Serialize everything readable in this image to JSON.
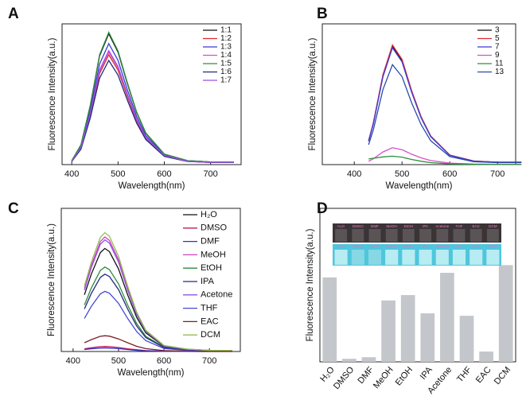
{
  "chart_data": [
    {
      "type": "line",
      "label": "A",
      "xlabel": "Wavelength(nm)",
      "ylabel": "Fluorescence Intensity(a.u.)",
      "xlim": [
        379,
        766
      ],
      "xticks": [
        400,
        500,
        600,
        700
      ],
      "ylim": [
        0,
        100
      ],
      "legend": "upper right",
      "x": [
        400,
        420,
        440,
        460,
        480,
        500,
        520,
        540,
        560,
        600,
        650,
        700,
        750
      ],
      "series": [
        {
          "name": "1:1",
          "color": "#111111",
          "values": [
            2.8,
            14,
            41.9,
            77.2,
            93,
            80,
            57.7,
            37.2,
            22.3,
            7.4,
            2.8,
            1.9,
            1.9
          ]
        },
        {
          "name": "1:2",
          "color": "#e0282e",
          "values": [
            2.3,
            11.7,
            35.1,
            64.7,
            78,
            67.1,
            48.4,
            31.2,
            18.7,
            6.2,
            2.3,
            1.6,
            1.6
          ]
        },
        {
          "name": "1:3",
          "color": "#3b3bd6",
          "values": [
            2.6,
            12.9,
            38.7,
            71.4,
            86,
            74,
            53.3,
            34.4,
            20.6,
            6.9,
            2.6,
            1.7,
            1.7
          ]
        },
        {
          "name": "1:4",
          "color": "#d84fc9",
          "values": [
            2.4,
            12,
            36,
            66.4,
            80,
            68.8,
            49.6,
            32,
            19.2,
            6.4,
            2.4,
            1.6,
            1.6
          ]
        },
        {
          "name": "1:5",
          "color": "#2f8f3f",
          "values": [
            2.8,
            14.1,
            42.3,
            78,
            94,
            80.8,
            58.3,
            37.6,
            22.6,
            7.5,
            2.8,
            1.9,
            1.9
          ]
        },
        {
          "name": "1:6",
          "color": "#1e2a78",
          "values": [
            2.2,
            11.1,
            33.3,
            61.4,
            74,
            63.6,
            45.9,
            29.6,
            17.8,
            5.9,
            2.2,
            1.5,
            1.5
          ]
        },
        {
          "name": "1:7",
          "color": "#9b4fe0",
          "values": [
            2.4,
            12.2,
            36.5,
            67.2,
            81,
            69.7,
            50.2,
            32.4,
            19.4,
            6.5,
            2.4,
            1.6,
            1.6
          ]
        }
      ]
    },
    {
      "type": "line",
      "label": "B",
      "xlabel": "Wavelength(nm)",
      "ylabel": "Fluorescence Intensity(a.u.)",
      "xlim": [
        333,
        738
      ],
      "xticks": [
        400,
        500,
        600,
        700
      ],
      "ylim": [
        0,
        100
      ],
      "legend": "upper right",
      "x": [
        430,
        440,
        460,
        480,
        500,
        520,
        540,
        560,
        600,
        650,
        700,
        750
      ],
      "series": [
        {
          "name": "3",
          "color": "#111111",
          "values": [
            16.8,
            29.4,
            63,
            84,
            73.9,
            52.1,
            33.6,
            20.2,
            6.7,
            2.5,
            1.7,
            1.7
          ]
        },
        {
          "name": "5",
          "color": "#e0282e",
          "values": [
            17,
            29.8,
            63.8,
            85,
            74.8,
            52.7,
            34,
            20.4,
            6.8,
            2.6,
            1.7,
            1.7
          ]
        },
        {
          "name": "7",
          "color": "#3b3bd6",
          "values": [
            16.6,
            29.1,
            62.3,
            83,
            73,
            51.5,
            33.2,
            19.9,
            6.6,
            2.5,
            1.7,
            1.7
          ]
        },
        {
          "name": "9",
          "color": "#d84fc9",
          "values": [
            2.4,
            4.2,
            9,
            12,
            10.6,
            7.4,
            4.8,
            2.9,
            1,
            0.4,
            0.2,
            0.2
          ]
        },
        {
          "name": "11",
          "color": "#2f8f3f",
          "values": [
            4,
            4.5,
            5.5,
            6,
            5.3,
            3.7,
            2.4,
            1.4,
            0.5,
            0.2,
            0.1,
            0.1
          ]
        },
        {
          "name": "13",
          "color": "#2b4aa8",
          "values": [
            14.2,
            24.9,
            53.3,
            71,
            62.5,
            44,
            28.4,
            17,
            5.7,
            2.1,
            1.4,
            1.4
          ]
        }
      ]
    },
    {
      "type": "line",
      "label": "C",
      "xlabel": "Wavelength(nm)",
      "ylabel": "Fluorescence Intensity(a.u.)",
      "xlim": [
        374,
        768
      ],
      "xticks": [
        400,
        500,
        600,
        700
      ],
      "ylim": [
        0,
        100
      ],
      "legend": "upper right",
      "x": [
        425,
        440,
        460,
        470,
        480,
        500,
        520,
        540,
        560,
        600,
        650,
        700,
        750
      ],
      "series": [
        {
          "name": "H₂O",
          "color": "#111111",
          "values": [
            39.6,
            54,
            69.1,
            72,
            69.8,
            57.6,
            39.6,
            23.8,
            13,
            3.6,
            1.4,
            0.7,
            0.7
          ]
        },
        {
          "name": "DMSO",
          "color": "#c2185b",
          "values": [
            1.9,
            2.6,
            3.4,
            3.5,
            3.4,
            2.8,
            1.9,
            1.2,
            0.6,
            0.2,
            0.1,
            0,
            0
          ]
        },
        {
          "name": "DMF",
          "color": "#3030c0",
          "values": [
            1.4,
            1.9,
            2.4,
            2.5,
            2.4,
            2,
            1.4,
            0.8,
            0.5,
            0.1,
            0.1,
            0,
            0
          ]
        },
        {
          "name": "MeOH",
          "color": "#d040c0",
          "values": [
            44,
            60,
            76.8,
            80,
            77.6,
            64,
            44,
            26.4,
            14.4,
            4,
            1.6,
            0.8,
            0.8
          ]
        },
        {
          "name": "EtOH",
          "color": "#2e8b3e",
          "values": [
            32.5,
            44.3,
            56.6,
            59,
            57.2,
            47.2,
            32.5,
            19.5,
            10.6,
            3,
            1.2,
            0.6,
            0.6
          ]
        },
        {
          "name": "IPA",
          "color": "#1f2a80",
          "values": [
            29.7,
            40.5,
            51.8,
            54,
            52.4,
            43.2,
            29.7,
            17.8,
            9.7,
            2.7,
            1.1,
            0.5,
            0.5
          ]
        },
        {
          "name": "Acetone",
          "color": "#9a4fe0",
          "values": [
            42.9,
            58.5,
            74.9,
            78,
            75.7,
            62.4,
            42.9,
            25.7,
            14,
            3.9,
            1.6,
            0.8,
            0.8
          ]
        },
        {
          "name": "THF",
          "color": "#4848d0",
          "values": [
            23.1,
            31.5,
            40.3,
            42,
            40.7,
            33.6,
            23.1,
            13.9,
            7.6,
            2.1,
            0.8,
            0.4,
            0.4
          ]
        },
        {
          "name": "EAC",
          "color": "#7a1f2a",
          "values": [
            6.1,
            8.3,
            10.6,
            11,
            10.7,
            8.8,
            6.1,
            3.6,
            2,
            0.6,
            0.2,
            0.1,
            0.1
          ]
        },
        {
          "name": "DCM",
          "color": "#8fbf4f",
          "values": [
            45.7,
            62.3,
            79.7,
            83,
            80.5,
            66.4,
            45.7,
            27.4,
            14.9,
            4.2,
            1.7,
            0.8,
            0.8
          ]
        }
      ]
    },
    {
      "type": "bar",
      "label": "D",
      "ylabel": "Fluorescence Intensity(a.u.)",
      "ylim": [
        0,
        100
      ],
      "color": "#c3c7cc",
      "categories": [
        "H₂O",
        "DMSO",
        "DMF",
        "MeOH",
        "EtOH",
        "IPA",
        "Acetone",
        "THF",
        "EAC",
        "DCM"
      ],
      "values": [
        55,
        2,
        3,
        40,
        43.5,
        31.6,
        58,
        30,
        6.7,
        63
      ]
    }
  ]
}
